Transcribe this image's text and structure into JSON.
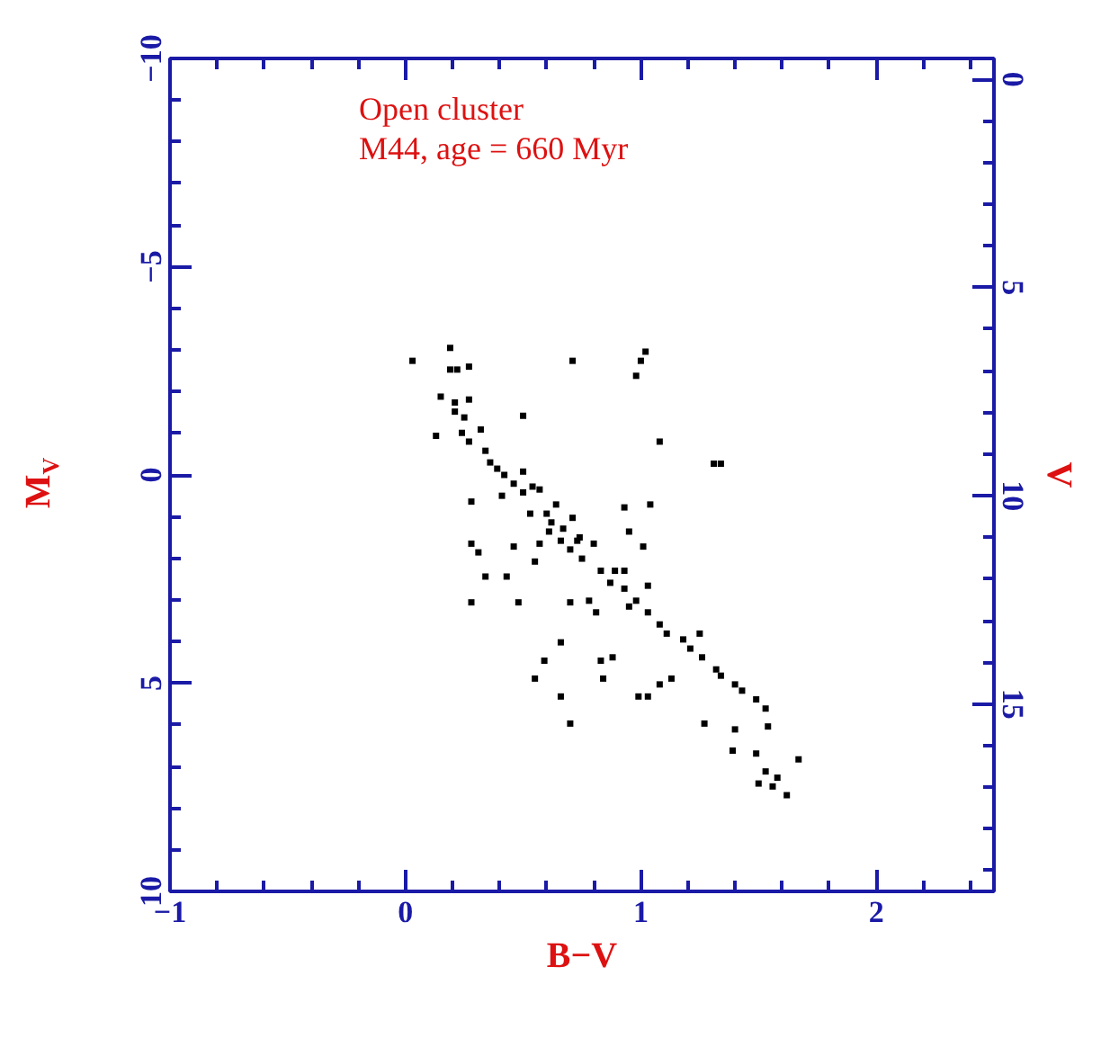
{
  "chart_data": {
    "type": "scatter",
    "xlabel": "B−V",
    "ylabel": "M$_{V}$",
    "y2label": "V",
    "annotations": [
      "Open cluster",
      "M44, age = 660 Myr"
    ],
    "xlim": [
      -1,
      2.5
    ],
    "xticks": [
      -1,
      0,
      1,
      2
    ],
    "ylim": [
      10,
      -10
    ],
    "yticks": [
      -10,
      -5,
      0,
      5,
      10
    ],
    "y2lim": [
      19.5,
      -0.5
    ],
    "y2ticks": [
      0,
      5,
      10,
      15
    ],
    "grid": false,
    "marker": "square",
    "series": [
      {
        "color": "#000000",
        "x": [
          0.03,
          0.19,
          0.19,
          0.22,
          0.27,
          0.71,
          1.02,
          1.0,
          0.98,
          0.15,
          0.21,
          0.27,
          0.21,
          0.25,
          0.5,
          0.13,
          0.24,
          0.27,
          0.32,
          0.34,
          0.36,
          1.08,
          1.31,
          1.34,
          0.42,
          0.46,
          0.5,
          0.5,
          0.54,
          0.57,
          0.28,
          0.41,
          0.53,
          0.6,
          0.64,
          0.71,
          0.61,
          0.66,
          0.73,
          0.8,
          0.7,
          0.75,
          0.83,
          0.89,
          0.93,
          0.93,
          0.98,
          1.03,
          1.03,
          1.11,
          1.18,
          1.25,
          1.26,
          1.32,
          1.4,
          1.49,
          1.53,
          1.54,
          1.4,
          1.27,
          1.49,
          1.39,
          1.67,
          1.53,
          1.58,
          1.5,
          1.56,
          1.62,
          0.28,
          0.31,
          0.34,
          0.43,
          0.46,
          0.55,
          0.57,
          0.28,
          0.48,
          0.7,
          0.78,
          0.81,
          0.66,
          0.59,
          0.55,
          0.83,
          0.88,
          0.84,
          0.66,
          0.7,
          0.99,
          1.03,
          1.08,
          1.13,
          0.93,
          0.95,
          1.04,
          1.01,
          0.39,
          0.62,
          0.67,
          0.74,
          0.87,
          0.95,
          1.08,
          1.21,
          1.34,
          1.43
        ],
        "values": [
          -2.74,
          -3.05,
          -2.53,
          -2.53,
          -2.6,
          -2.74,
          -2.96,
          -2.74,
          -2.38,
          -1.88,
          -1.74,
          -1.81,
          -1.52,
          -1.38,
          -1.42,
          -0.94,
          -1.01,
          -0.8,
          -1.09,
          -0.58,
          -0.3,
          -0.8,
          -0.27,
          -0.27,
          0.0,
          0.21,
          -0.08,
          0.42,
          0.28,
          0.35,
          0.64,
          0.5,
          0.93,
          0.93,
          0.71,
          1.03,
          1.36,
          1.58,
          1.58,
          1.65,
          1.79,
          2.01,
          2.3,
          2.3,
          2.3,
          2.73,
          3.02,
          2.66,
          3.3,
          3.81,
          3.95,
          3.81,
          4.38,
          4.67,
          5.03,
          5.39,
          5.61,
          6.04,
          6.11,
          5.97,
          6.69,
          6.62,
          6.83,
          7.12,
          7.27,
          7.41,
          7.48,
          7.69,
          1.65,
          1.86,
          2.44,
          2.44,
          1.72,
          2.08,
          1.65,
          3.06,
          3.06,
          3.06,
          3.02,
          3.3,
          4.02,
          4.46,
          4.89,
          4.46,
          4.38,
          4.89,
          5.32,
          5.97,
          5.32,
          5.32,
          5.03,
          4.89,
          0.78,
          1.36,
          0.71,
          1.72,
          -0.15,
          1.14,
          1.29,
          1.5,
          2.59,
          3.16,
          3.59,
          4.17,
          4.82,
          5.18
        ]
      }
    ]
  }
}
